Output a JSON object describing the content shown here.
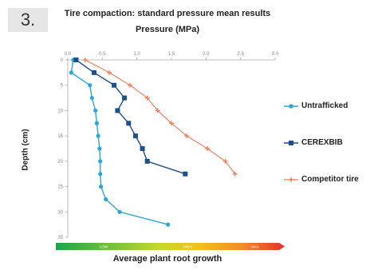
{
  "badge": "3.",
  "chart_data": {
    "type": "line",
    "title": "Tire compaction: standard pressure mean results",
    "xlabel": "Pressure (MPa)",
    "ylabel": "Depth (cm)",
    "bottom_label": "Average plant root growth",
    "gradient_labels": [
      "LOW",
      "HIGH",
      "MAX"
    ],
    "xlim": [
      0,
      3.0
    ],
    "ylim": [
      0,
      35
    ],
    "x_ticks": [
      "0.0",
      "0.5",
      "1.0",
      "1.5",
      "2.0",
      "2.5",
      "3.0"
    ],
    "y_ticks": [
      "0",
      "5",
      "10",
      "15",
      "20",
      "25",
      "30",
      "35"
    ],
    "grid": false,
    "legend_position": "right",
    "series": [
      {
        "name": "Untrafficked",
        "color": "#2aa7d8",
        "marker": "circle",
        "points": [
          [
            0.08,
            0
          ],
          [
            0.05,
            2.5
          ],
          [
            0.32,
            5
          ],
          [
            0.35,
            7.5
          ],
          [
            0.4,
            10
          ],
          [
            0.42,
            12.5
          ],
          [
            0.44,
            15
          ],
          [
            0.46,
            17.5
          ],
          [
            0.47,
            20
          ],
          [
            0.47,
            22.5
          ],
          [
            0.48,
            25
          ],
          [
            0.55,
            27.5
          ],
          [
            0.75,
            30
          ],
          [
            1.45,
            32.5
          ]
        ]
      },
      {
        "name": "CEREXBIB",
        "color": "#1c4f8c",
        "marker": "square",
        "points": [
          [
            0.12,
            0
          ],
          [
            0.38,
            2.5
          ],
          [
            0.67,
            5
          ],
          [
            0.82,
            7.5
          ],
          [
            0.72,
            10
          ],
          [
            0.88,
            12.5
          ],
          [
            0.98,
            15
          ],
          [
            1.08,
            17.5
          ],
          [
            1.15,
            20
          ],
          [
            1.7,
            22.5
          ]
        ]
      },
      {
        "name": "Competitor tire",
        "color": "#f07a58",
        "marker": "plus",
        "points": [
          [
            0.25,
            0
          ],
          [
            0.6,
            2.5
          ],
          [
            0.9,
            5
          ],
          [
            1.15,
            7.5
          ],
          [
            1.3,
            10
          ],
          [
            1.5,
            12.5
          ],
          [
            1.72,
            15
          ],
          [
            2.02,
            17.5
          ],
          [
            2.28,
            20
          ],
          [
            2.42,
            22.5
          ]
        ]
      }
    ]
  }
}
